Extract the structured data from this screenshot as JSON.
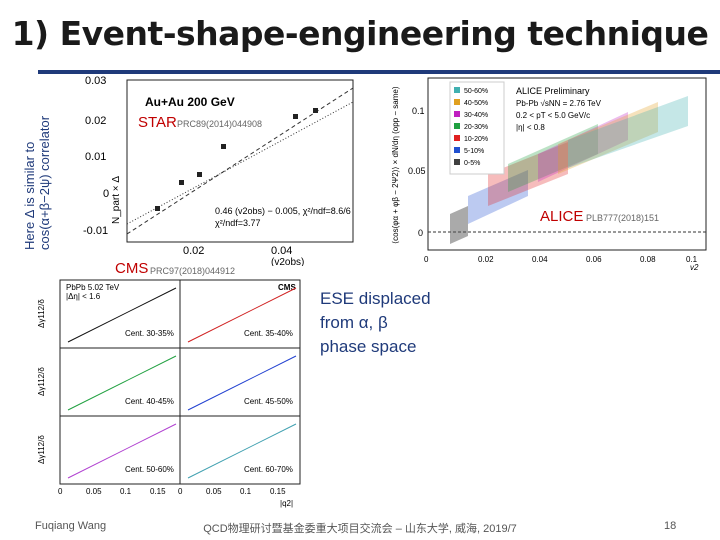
{
  "slide": {
    "title": "1) Event-shape-engineering technique",
    "side_note_line1": "Here Δ is similar to",
    "side_note_line2": "cos(α+β−2ψ) correlator",
    "ese_note_line1": "ESE displaced",
    "ese_note_line2": "from α, β",
    "ese_note_line3": "phase space"
  },
  "labels": {
    "star": "STAR",
    "star_ref": "PRC89(2014)044908",
    "alice": "ALICE",
    "alice_ref": "PLB777(2018)151",
    "cms": "CMS",
    "cms_ref": "PRC97(2018)044912"
  },
  "star_plot": {
    "system": "Au+Au 200 GeV",
    "ylabel": "N_part × Δ",
    "xlabel": "(v2obs)",
    "yticks": [
      "0.03",
      "0.02",
      "0.01",
      "0",
      "-0.01"
    ],
    "xticks": [
      "0.02",
      "0.04"
    ],
    "fit1": "0.46 (v2obs) − 0.005, χ²/ndf=8.6/6",
    "fit2": "χ²/ndf=3.77"
  },
  "alice_plot": {
    "legend_title": "ALICE Preliminary",
    "lines": [
      "Pb-Pb √sNN = 2.76 TeV",
      "0.2 < pT < 5.0 GeV/c",
      "|η| < 0.8"
    ],
    "ylabel": "⟨cos(φα + φβ − 2Ψ2)⟩ × dN/dη (opp − same)",
    "xlabel": "v2",
    "yticks": [
      "0.1",
      "0.05",
      "0"
    ],
    "xticks": [
      "0",
      "0.02",
      "0.04",
      "0.06",
      "0.08",
      "0.1"
    ],
    "centralities": [
      {
        "label": "50-60%",
        "color": "#40b0b0"
      },
      {
        "label": "40-50%",
        "color": "#e0a020"
      },
      {
        "label": "30-40%",
        "color": "#c020c0"
      },
      {
        "label": "20-30%",
        "color": "#20a040"
      },
      {
        "label": "10-20%",
        "color": "#e02020"
      },
      {
        "label": "5-10%",
        "color": "#2050d0"
      },
      {
        "label": "0-5%",
        "color": "#404040"
      }
    ]
  },
  "cms_plot": {
    "header1": "PbPb 5.02 TeV",
    "header2": "|Δη| < 1.6",
    "exp": "CMS",
    "xlabel": "|q2|",
    "ylabels": [
      "Δγ112/δ",
      "Δγ112/δ",
      "Δγ112/δ"
    ],
    "xticks": [
      "0",
      "0.05",
      "0.1",
      "0.15"
    ],
    "panels": [
      {
        "label": "Cent. 30-35%",
        "color": "#111111"
      },
      {
        "label": "Cent. 35-40%",
        "color": "#d02020"
      },
      {
        "label": "Cent. 40-45%",
        "color": "#20a040"
      },
      {
        "label": "Cent. 45-50%",
        "color": "#2040d0"
      },
      {
        "label": "Cent. 50-60%",
        "color": "#b040d0"
      },
      {
        "label": "Cent. 60-70%",
        "color": "#40a0b0"
      }
    ]
  },
  "footer": {
    "author": "Fuqiang Wang",
    "event": "QCD物理研讨暨基金委重大项目交流会 – 山东大学, 威海, 2019/7",
    "page": "18"
  },
  "colors": {
    "accent": "#1f3a7a",
    "label_red": "#c00000"
  }
}
